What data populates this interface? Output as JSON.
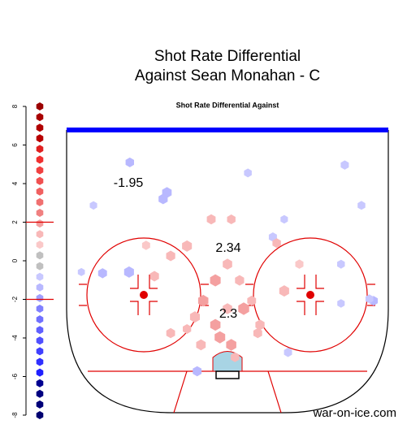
{
  "chart_data": {
    "type": "hexbin",
    "title": [
      "Shot Rate Differential",
      "Against Sean Monahan - C"
    ],
    "subtitle": "Shot Rate Differential Against",
    "caption": "war-on-ice.com",
    "xlim": [
      -42.5,
      42.5
    ],
    "ylim": [
      25,
      100
    ],
    "legend_lim": [
      -8,
      8
    ],
    "legend_ticks": [
      8,
      6,
      4,
      2,
      0,
      -2,
      -4,
      -6,
      -8
    ],
    "legend_marker_lines": [
      2,
      -2
    ],
    "legend_colors": [
      "#9b0000",
      "#a80000",
      "#b00000",
      "#b80000",
      "#e02020",
      "#f03030",
      "#f04040",
      "#f05050",
      "#f06060",
      "#f07070",
      "#f08080",
      "#f4a0a0",
      "#f8b8b8",
      "#fac8c8",
      "#c0c0c0",
      "#c0c0c0",
      "#c8c8ff",
      "#b8b8ff",
      "#a0a0ff",
      "#8080ff",
      "#7070ff",
      "#6060ff",
      "#5050ff",
      "#4040ff",
      "#3030ff",
      "#2020ff",
      "#000090",
      "#000080",
      "#000078",
      "#000070"
    ],
    "region_values": [
      -1.95,
      2.34,
      2.3
    ],
    "hexes": {
      "x": [
        -25.8,
        -16,
        5.4,
        31,
        -35.4,
        35.4,
        -33,
        -26,
        12,
        15,
        38.6,
        30,
        16,
        -8,
        -17,
        30,
        -38.6,
        37.5,
        -4.3,
        1,
        -10.7,
        -15,
        0,
        -3.2,
        3.2,
        -6.4,
        6.4,
        -8.6,
        0,
        4.3,
        -3.2,
        -10.7,
        8.6,
        15,
        8,
        -2,
        -7,
        1,
        2,
        -21.5,
        -15,
        13,
        19,
        -19.3
      ],
      "y": [
        33.6,
        41.6,
        36.4,
        34.3,
        45,
        45,
        63,
        62.7,
        53.4,
        48.7,
        70.3,
        60.6,
        84,
        89,
        43.3,
        71,
        62.7,
        69.8,
        48.7,
        48.7,
        55.8,
        58.4,
        60.6,
        64.9,
        64.9,
        70.3,
        70.3,
        74.6,
        72.4,
        72.4,
        76.7,
        77.8,
        76.7,
        67.7,
        78.9,
        80,
        82,
        82,
        85.3,
        55.6,
        78.9,
        55,
        60.6,
        63.8
      ],
      "values": [
        -1.2,
        -1.5,
        -1.0,
        -1.1,
        -0.9,
        -1.0,
        -1.3,
        -1.6,
        -1.1,
        -0.9,
        -1.2,
        -1.0,
        -1.1,
        -1.3,
        -1.4,
        -0.9,
        -0.8,
        -1.0,
        1.3,
        1.2,
        1.6,
        1.4,
        1.5,
        1.8,
        1.4,
        1.7,
        1.3,
        1.6,
        1.5,
        1.9,
        1.7,
        1.2,
        1.4,
        1.6,
        1.3,
        1.8,
        1.5,
        1.7,
        1.2,
        1.1,
        1.3,
        1.2,
        1.1,
        1.4
      ]
    }
  }
}
